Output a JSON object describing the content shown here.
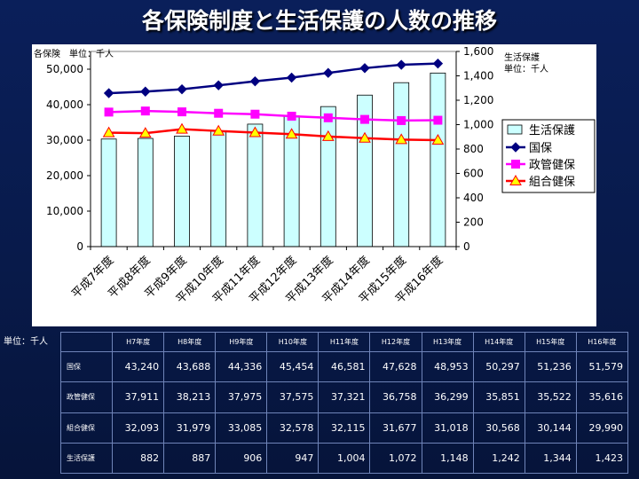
{
  "title": "各保険制度と生活保護の人数の推移",
  "chart_data": {
    "type": "bar",
    "left_axis_label": "各保険　単位：千人",
    "right_axis_label_1": "生活保護",
    "right_axis_label_2": "単位：千人",
    "categories": [
      "平成7年度",
      "平成8年度",
      "平成9年度",
      "平成10年度",
      "平成11年度",
      "平成12年度",
      "平成13年度",
      "平成14年度",
      "平成15年度",
      "平成16年度"
    ],
    "y_left_ticks": [
      "0",
      "10,000",
      "20,000",
      "30,000",
      "40,000",
      "50,000"
    ],
    "y_right_ticks": [
      "0",
      "200",
      "400",
      "600",
      "800",
      "1,000",
      "1,200",
      "1,400",
      "1,600"
    ],
    "ylim_left": [
      0,
      55000
    ],
    "ylim_right": [
      0,
      1600
    ],
    "bar_series": {
      "name": "生活保護",
      "color": "#ccffff",
      "values": [
        882,
        887,
        906,
        947,
        1004,
        1072,
        1148,
        1242,
        1344,
        1423
      ]
    },
    "line_series": [
      {
        "name": "国保",
        "color": "#000080",
        "marker": "diamond",
        "values": [
          43240,
          43688,
          44336,
          45454,
          46581,
          47628,
          48953,
          50297,
          51236,
          51579
        ]
      },
      {
        "name": "政管健保",
        "color": "#ff00ff",
        "marker": "square",
        "values": [
          37911,
          38213,
          37975,
          37575,
          37321,
          36758,
          36299,
          35851,
          35522,
          35616
        ]
      },
      {
        "name": "組合健保",
        "color": "#ff0000",
        "marker": "triangle",
        "marker_fill": "#ffff00",
        "values": [
          32093,
          31979,
          33085,
          32578,
          32115,
          31677,
          31018,
          30568,
          30144,
          29990
        ]
      }
    ],
    "legend_position": "right"
  },
  "table": {
    "unit_label": "単位：千人",
    "headers": [
      "H7年度",
      "H8年度",
      "H9年度",
      "H10年度",
      "H11年度",
      "H12年度",
      "H13年度",
      "H14年度",
      "H15年度",
      "H16年度"
    ],
    "rows": [
      {
        "label": "国保",
        "values": [
          "43,240",
          "43,688",
          "44,336",
          "45,454",
          "46,581",
          "47,628",
          "48,953",
          "50,297",
          "51,236",
          "51,579"
        ]
      },
      {
        "label": "政管健保",
        "values": [
          "37,911",
          "38,213",
          "37,975",
          "37,575",
          "37,321",
          "36,758",
          "36,299",
          "35,851",
          "35,522",
          "35,616"
        ]
      },
      {
        "label": "組合健保",
        "values": [
          "32,093",
          "31,979",
          "33,085",
          "32,578",
          "32,115",
          "31,677",
          "31,018",
          "30,568",
          "30,144",
          "29,990"
        ]
      },
      {
        "label": "生活保護",
        "values": [
          "882",
          "887",
          "906",
          "947",
          "1,004",
          "1,072",
          "1,148",
          "1,242",
          "1,344",
          "1,423"
        ]
      }
    ]
  }
}
